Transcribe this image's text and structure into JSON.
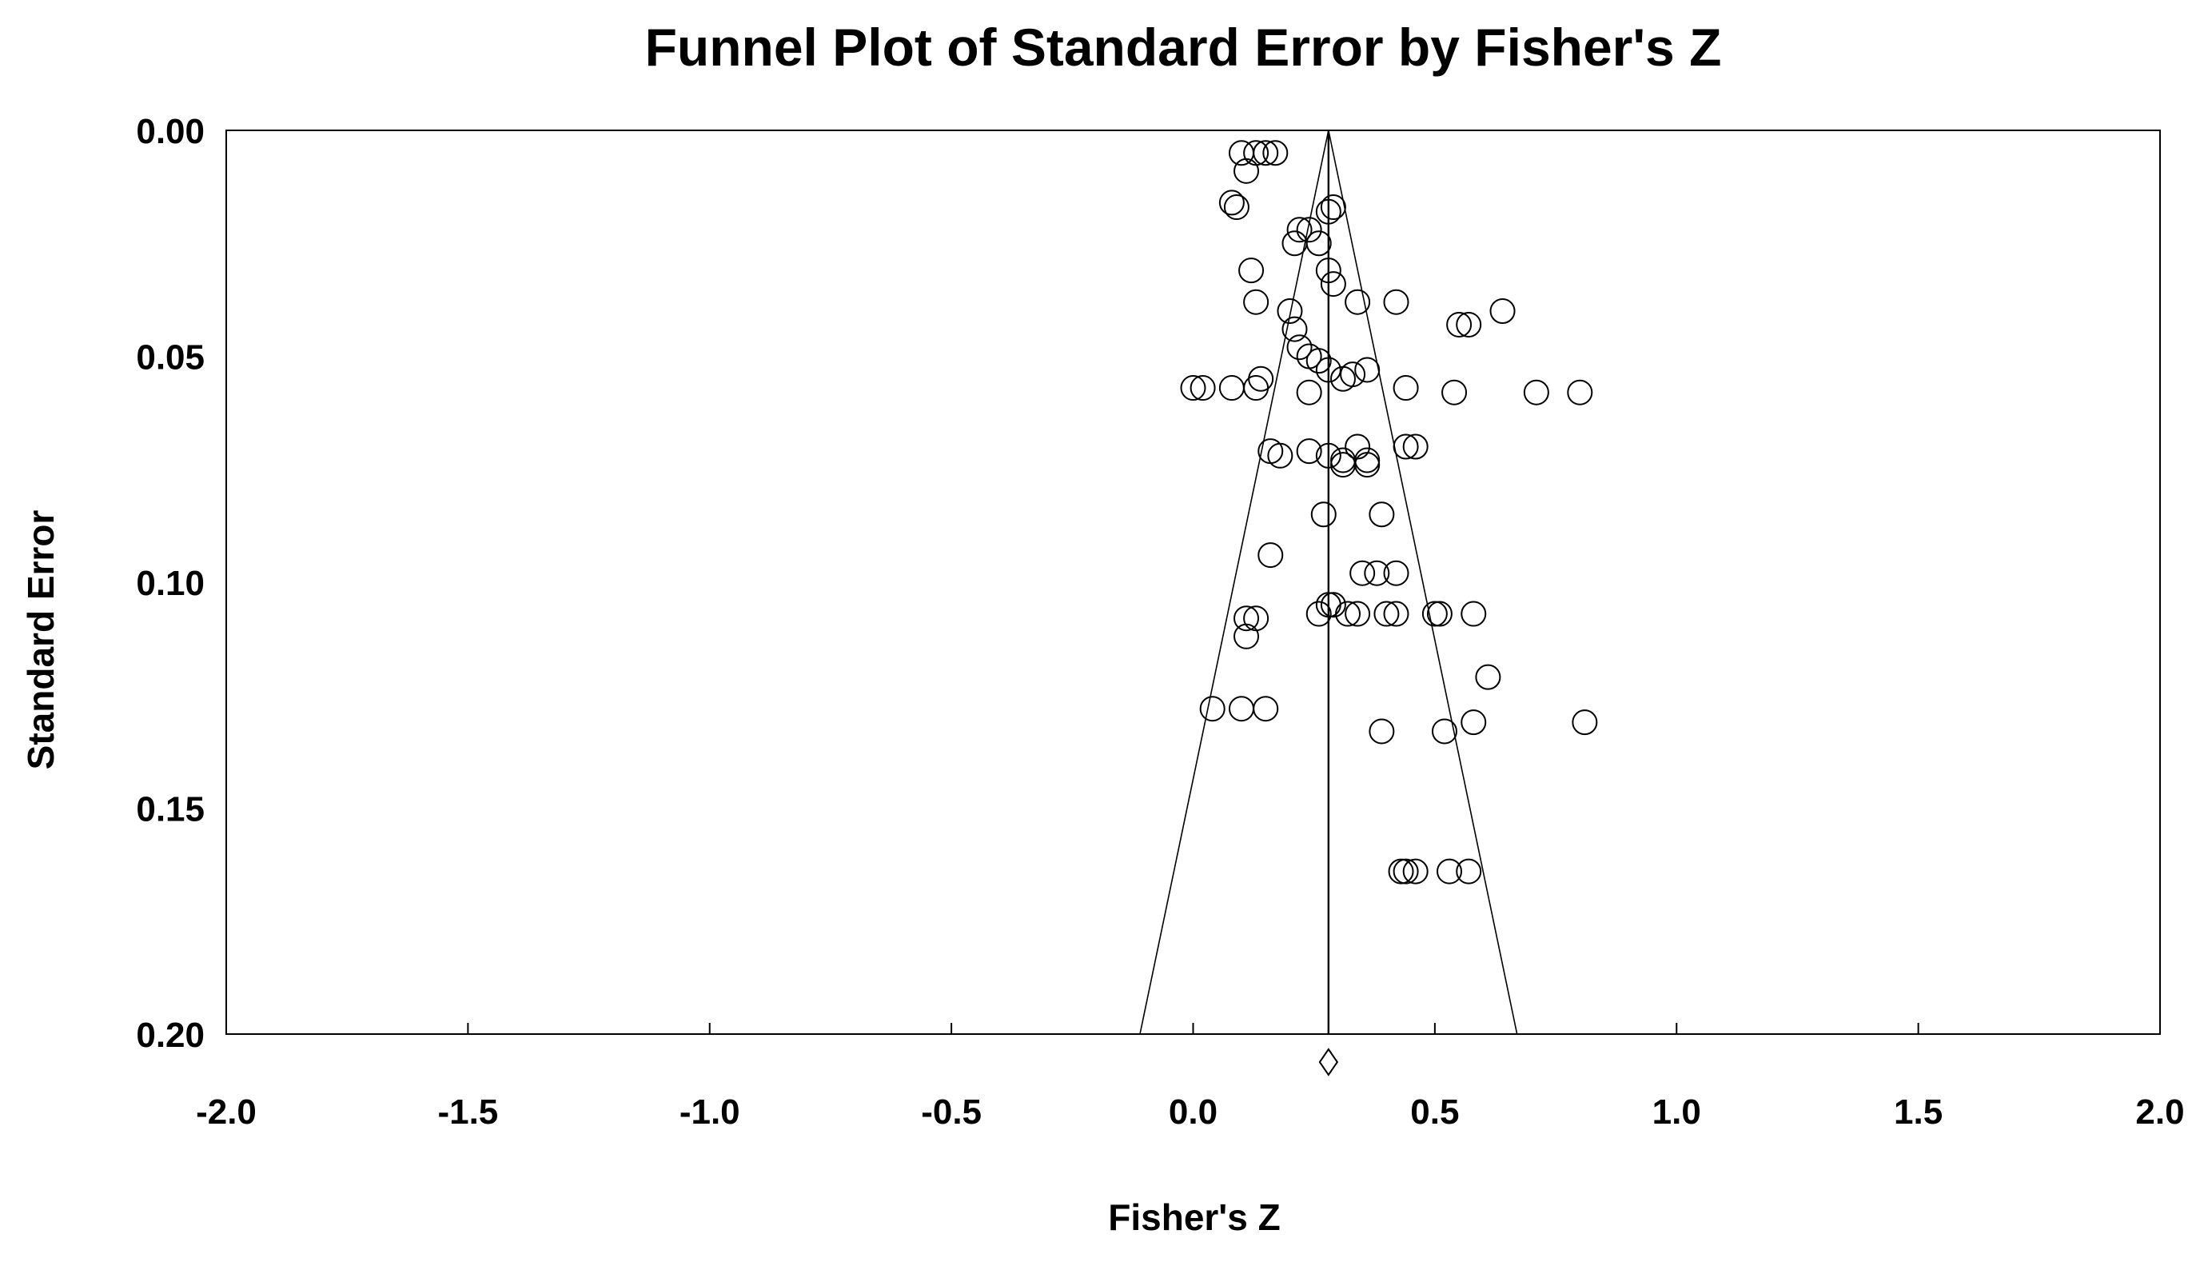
{
  "chart_data": {
    "type": "scatter",
    "title": "Funnel Plot of Standard Error by Fisher's Z",
    "xlabel": "Fisher's Z",
    "ylabel": "Standard Error",
    "xlim": [
      -2.0,
      2.0
    ],
    "ylim": [
      0.0,
      0.2
    ],
    "y_inverted": true,
    "x_tick_labels": [
      "-2.0",
      "-1.5",
      "-1.0",
      "-0.5",
      "0.0",
      "0.5",
      "1.0",
      "1.5",
      "2.0"
    ],
    "y_tick_labels": [
      "0.00",
      "0.05",
      "0.10",
      "0.15",
      "0.20"
    ],
    "grid": false,
    "legend": "none",
    "summary_effect": 0.28,
    "funnel": {
      "center": 0.28,
      "base_se": 0.2,
      "left_x": -0.11,
      "right_x": 0.67
    },
    "summary_diamond_x": 0.28,
    "marker": "open-circle",
    "points": [
      {
        "x": 0.1,
        "y": 0.005
      },
      {
        "x": 0.13,
        "y": 0.005
      },
      {
        "x": 0.15,
        "y": 0.005
      },
      {
        "x": 0.17,
        "y": 0.005
      },
      {
        "x": 0.11,
        "y": 0.009
      },
      {
        "x": 0.08,
        "y": 0.016
      },
      {
        "x": 0.09,
        "y": 0.017
      },
      {
        "x": 0.29,
        "y": 0.017
      },
      {
        "x": 0.28,
        "y": 0.018
      },
      {
        "x": 0.22,
        "y": 0.022
      },
      {
        "x": 0.24,
        "y": 0.022
      },
      {
        "x": 0.21,
        "y": 0.025
      },
      {
        "x": 0.26,
        "y": 0.025
      },
      {
        "x": 0.12,
        "y": 0.031
      },
      {
        "x": 0.28,
        "y": 0.031
      },
      {
        "x": 0.29,
        "y": 0.034
      },
      {
        "x": 0.13,
        "y": 0.038
      },
      {
        "x": 0.34,
        "y": 0.038
      },
      {
        "x": 0.42,
        "y": 0.038
      },
      {
        "x": 0.2,
        "y": 0.04
      },
      {
        "x": 0.64,
        "y": 0.04
      },
      {
        "x": 0.55,
        "y": 0.043
      },
      {
        "x": 0.57,
        "y": 0.043
      },
      {
        "x": 0.21,
        "y": 0.044
      },
      {
        "x": 0.22,
        "y": 0.048
      },
      {
        "x": 0.24,
        "y": 0.05
      },
      {
        "x": 0.26,
        "y": 0.051
      },
      {
        "x": 0.28,
        "y": 0.053
      },
      {
        "x": 0.36,
        "y": 0.053
      },
      {
        "x": 0.14,
        "y": 0.055
      },
      {
        "x": 0.31,
        "y": 0.055
      },
      {
        "x": 0.33,
        "y": 0.054
      },
      {
        "x": 0.0,
        "y": 0.057
      },
      {
        "x": 0.02,
        "y": 0.057
      },
      {
        "x": 0.08,
        "y": 0.057
      },
      {
        "x": 0.13,
        "y": 0.057
      },
      {
        "x": 0.44,
        "y": 0.057
      },
      {
        "x": 0.24,
        "y": 0.058
      },
      {
        "x": 0.54,
        "y": 0.058
      },
      {
        "x": 0.71,
        "y": 0.058
      },
      {
        "x": 0.8,
        "y": 0.058
      },
      {
        "x": 0.16,
        "y": 0.071
      },
      {
        "x": 0.18,
        "y": 0.072
      },
      {
        "x": 0.24,
        "y": 0.071
      },
      {
        "x": 0.28,
        "y": 0.072
      },
      {
        "x": 0.31,
        "y": 0.073
      },
      {
        "x": 0.31,
        "y": 0.074
      },
      {
        "x": 0.34,
        "y": 0.07
      },
      {
        "x": 0.36,
        "y": 0.073
      },
      {
        "x": 0.36,
        "y": 0.074
      },
      {
        "x": 0.44,
        "y": 0.07
      },
      {
        "x": 0.46,
        "y": 0.07
      },
      {
        "x": 0.27,
        "y": 0.085
      },
      {
        "x": 0.39,
        "y": 0.085
      },
      {
        "x": 0.16,
        "y": 0.094
      },
      {
        "x": 0.35,
        "y": 0.098
      },
      {
        "x": 0.38,
        "y": 0.098
      },
      {
        "x": 0.42,
        "y": 0.098
      },
      {
        "x": 0.28,
        "y": 0.105
      },
      {
        "x": 0.29,
        "y": 0.105
      },
      {
        "x": 0.26,
        "y": 0.107
      },
      {
        "x": 0.32,
        "y": 0.107
      },
      {
        "x": 0.34,
        "y": 0.107
      },
      {
        "x": 0.4,
        "y": 0.107
      },
      {
        "x": 0.42,
        "y": 0.107
      },
      {
        "x": 0.5,
        "y": 0.107
      },
      {
        "x": 0.51,
        "y": 0.107
      },
      {
        "x": 0.58,
        "y": 0.107
      },
      {
        "x": 0.11,
        "y": 0.108
      },
      {
        "x": 0.13,
        "y": 0.108
      },
      {
        "x": 0.11,
        "y": 0.112
      },
      {
        "x": 0.61,
        "y": 0.121
      },
      {
        "x": 0.04,
        "y": 0.128
      },
      {
        "x": 0.1,
        "y": 0.128
      },
      {
        "x": 0.15,
        "y": 0.128
      },
      {
        "x": 0.58,
        "y": 0.131
      },
      {
        "x": 0.81,
        "y": 0.131
      },
      {
        "x": 0.39,
        "y": 0.133
      },
      {
        "x": 0.52,
        "y": 0.133
      },
      {
        "x": 0.43,
        "y": 0.164
      },
      {
        "x": 0.44,
        "y": 0.164
      },
      {
        "x": 0.46,
        "y": 0.164
      },
      {
        "x": 0.53,
        "y": 0.164
      },
      {
        "x": 0.57,
        "y": 0.164
      }
    ]
  }
}
